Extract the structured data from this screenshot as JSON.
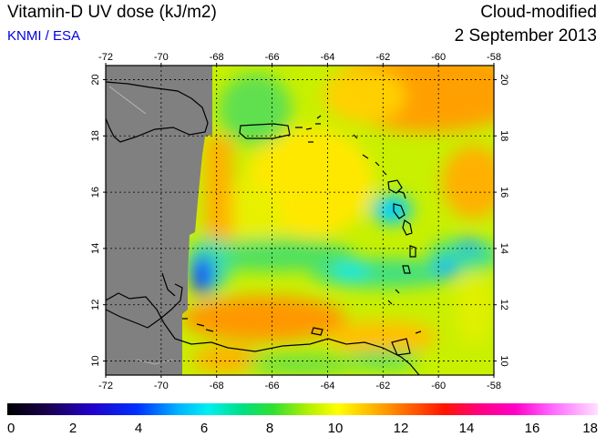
{
  "header": {
    "title": "Vitamin-D UV dose (kJ/m2)",
    "credit": "KNMI / ESA",
    "mode": "Cloud-modified",
    "date": "2 September 2013"
  },
  "colors": {
    "credit": "#0000dd",
    "no_data": "#808080",
    "land_outline": "#000000",
    "grid": "#000000"
  },
  "map": {
    "lon_range": [
      -72,
      -58
    ],
    "lat_range": [
      9.5,
      20.5
    ],
    "lon_ticks": [
      "-72",
      "-70",
      "-68",
      "-66",
      "-64",
      "-62",
      "-60",
      "-58"
    ],
    "lat_ticks": [
      "10",
      "12",
      "14",
      "16",
      "18",
      "20"
    ]
  },
  "colorbar": {
    "min": 0,
    "max": 18,
    "ticks": [
      "0",
      "2",
      "4",
      "6",
      "8",
      "10",
      "12",
      "14",
      "16",
      "18"
    ]
  }
}
